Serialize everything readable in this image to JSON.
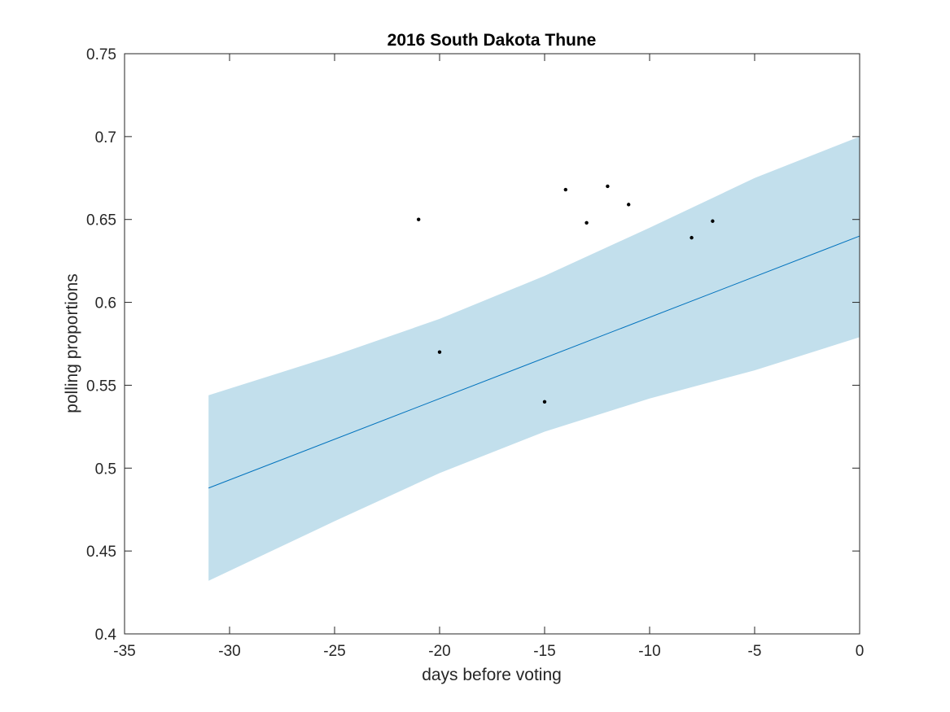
{
  "chart_data": {
    "type": "line",
    "title": "2016 South Dakota Thune",
    "xlabel": "days before voting",
    "ylabel": "polling proportions",
    "xlim": [
      -35,
      0
    ],
    "ylim": [
      0.4,
      0.75
    ],
    "x_ticks": [
      -35,
      -30,
      -25,
      -20,
      -15,
      -10,
      -5,
      0
    ],
    "y_ticks": [
      0.4,
      0.45,
      0.5,
      0.55,
      0.6,
      0.65,
      0.7,
      0.75
    ],
    "x_tick_labels": [
      "-35",
      "-30",
      "-25",
      "-20",
      "-15",
      "-10",
      "-5",
      "0"
    ],
    "y_tick_labels": [
      "0.4",
      "0.45",
      "0.5",
      "0.55",
      "0.6",
      "0.65",
      "0.7",
      "0.75"
    ],
    "grid": false,
    "fit_line": {
      "x": [
        -31,
        0
      ],
      "y": [
        0.488,
        0.64
      ]
    },
    "confidence_band": {
      "x": [
        -31,
        -25,
        -20,
        -15,
        -10,
        -5,
        0
      ],
      "upper": [
        0.544,
        0.568,
        0.59,
        0.616,
        0.645,
        0.675,
        0.7
      ],
      "lower": [
        0.432,
        0.468,
        0.497,
        0.522,
        0.542,
        0.559,
        0.579
      ]
    },
    "points": [
      {
        "x": -21,
        "y": 0.65
      },
      {
        "x": -20,
        "y": 0.57
      },
      {
        "x": -15,
        "y": 0.54
      },
      {
        "x": -14,
        "y": 0.668
      },
      {
        "x": -13,
        "y": 0.648
      },
      {
        "x": -12,
        "y": 0.67
      },
      {
        "x": -11,
        "y": 0.659
      },
      {
        "x": -8,
        "y": 0.639
      },
      {
        "x": -7,
        "y": 0.649
      }
    ],
    "colors": {
      "band": "#c2dfec",
      "line": "#0072bd",
      "points": "#000000",
      "axes": "#262626"
    }
  }
}
